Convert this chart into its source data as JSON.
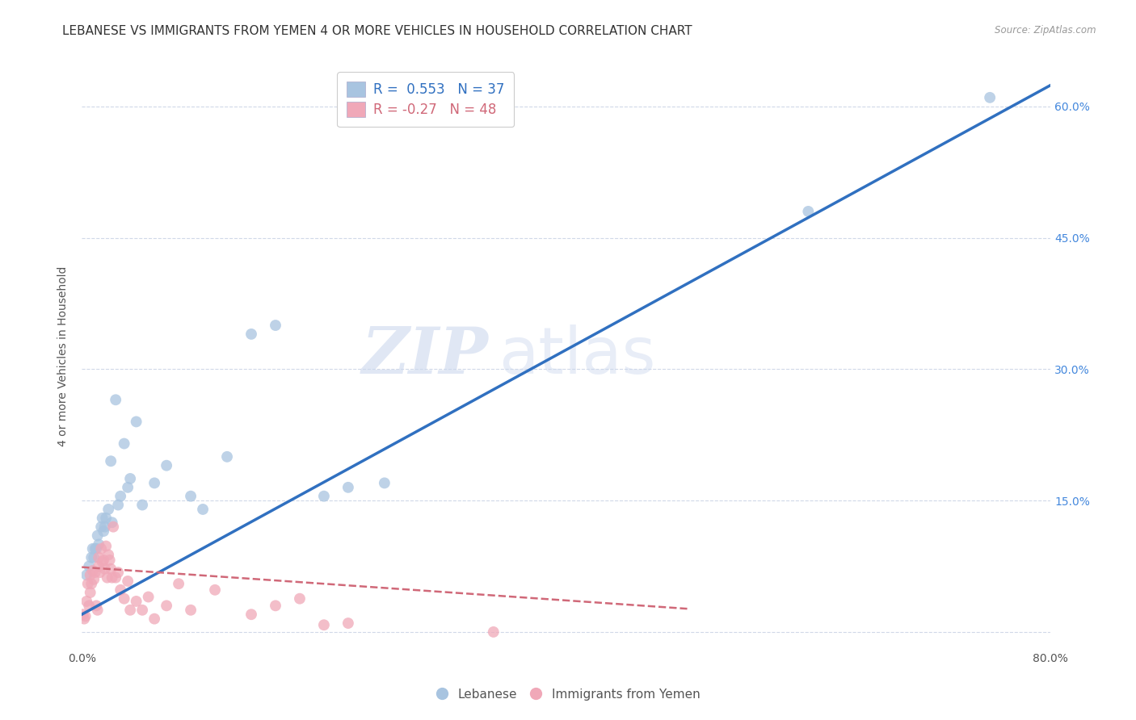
{
  "title": "LEBANESE VS IMMIGRANTS FROM YEMEN 4 OR MORE VEHICLES IN HOUSEHOLD CORRELATION CHART",
  "source": "Source: ZipAtlas.com",
  "ylabel": "4 or more Vehicles in Household",
  "xlim": [
    0.0,
    0.8
  ],
  "ylim": [
    -0.02,
    0.65
  ],
  "yticks_right": [
    0.0,
    0.15,
    0.3,
    0.45,
    0.6
  ],
  "yticklabels_right": [
    "",
    "15.0%",
    "30.0%",
    "45.0%",
    "60.0%"
  ],
  "r_lebanese": 0.553,
  "n_lebanese": 37,
  "r_yemen": -0.27,
  "n_yemen": 48,
  "watermark_zip": "ZIP",
  "watermark_atlas": "atlas",
  "legend_labels": [
    "Lebanese",
    "Immigrants from Yemen"
  ],
  "blue_color": "#a8c4e0",
  "pink_color": "#f0a8b8",
  "blue_line_color": "#3070c0",
  "pink_line_color": "#d06878",
  "lebanese_scatter_x": [
    0.004,
    0.006,
    0.008,
    0.009,
    0.01,
    0.011,
    0.012,
    0.013,
    0.014,
    0.016,
    0.017,
    0.018,
    0.019,
    0.02,
    0.022,
    0.024,
    0.025,
    0.028,
    0.03,
    0.032,
    0.035,
    0.038,
    0.04,
    0.045,
    0.05,
    0.06,
    0.07,
    0.09,
    0.1,
    0.12,
    0.14,
    0.16,
    0.2,
    0.22,
    0.25,
    0.6,
    0.75
  ],
  "lebanese_scatter_y": [
    0.065,
    0.075,
    0.085,
    0.095,
    0.085,
    0.095,
    0.095,
    0.11,
    0.1,
    0.12,
    0.13,
    0.115,
    0.12,
    0.13,
    0.14,
    0.195,
    0.125,
    0.265,
    0.145,
    0.155,
    0.215,
    0.165,
    0.175,
    0.24,
    0.145,
    0.17,
    0.19,
    0.155,
    0.14,
    0.2,
    0.34,
    0.35,
    0.155,
    0.165,
    0.17,
    0.48,
    0.61
  ],
  "yemen_scatter_x": [
    0.001,
    0.002,
    0.003,
    0.004,
    0.005,
    0.006,
    0.007,
    0.007,
    0.008,
    0.009,
    0.01,
    0.011,
    0.012,
    0.013,
    0.014,
    0.014,
    0.015,
    0.016,
    0.017,
    0.018,
    0.019,
    0.02,
    0.021,
    0.022,
    0.023,
    0.024,
    0.025,
    0.026,
    0.028,
    0.03,
    0.032,
    0.035,
    0.038,
    0.04,
    0.045,
    0.05,
    0.055,
    0.06,
    0.07,
    0.08,
    0.09,
    0.11,
    0.14,
    0.16,
    0.18,
    0.2,
    0.22,
    0.34
  ],
  "yemen_scatter_y": [
    0.02,
    0.015,
    0.018,
    0.035,
    0.055,
    0.03,
    0.045,
    0.065,
    0.055,
    0.07,
    0.06,
    0.068,
    0.03,
    0.025,
    0.075,
    0.085,
    0.068,
    0.095,
    0.08,
    0.082,
    0.072,
    0.098,
    0.062,
    0.088,
    0.082,
    0.072,
    0.062,
    0.12,
    0.062,
    0.068,
    0.048,
    0.038,
    0.058,
    0.025,
    0.035,
    0.025,
    0.04,
    0.015,
    0.03,
    0.055,
    0.025,
    0.048,
    0.02,
    0.03,
    0.038,
    0.008,
    0.01,
    0.0
  ],
  "background_color": "#ffffff",
  "grid_color": "#d0d8e8",
  "title_fontsize": 11,
  "axis_label_fontsize": 10,
  "tick_fontsize": 10
}
